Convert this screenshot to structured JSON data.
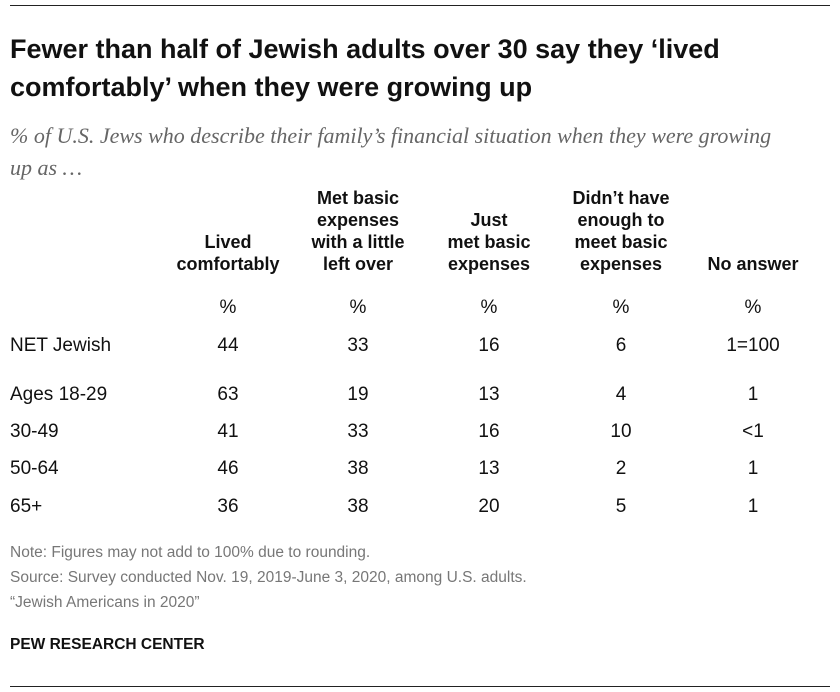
{
  "title": "Fewer than half of Jewish adults over 30 say they ‘lived comfortably’ when they were growing up",
  "subtitle": "% of U.S. Jews who describe their family’s financial situation when they were growing up as …",
  "table": {
    "columns": [
      [
        "Lived",
        "comfortably"
      ],
      [
        "Met basic",
        "expenses",
        "with a little",
        "left over"
      ],
      [
        "Just",
        "met basic",
        "expenses"
      ],
      [
        "Didn’t have",
        "enough to",
        "meet basic",
        "expenses"
      ],
      [
        "No answer"
      ]
    ],
    "units": [
      "%",
      "%",
      "%",
      "%",
      "%"
    ],
    "rows": [
      {
        "label": "NET Jewish",
        "values": [
          44,
          33,
          16,
          6,
          "1=100"
        ]
      },
      {
        "label": "Ages 18-29",
        "values": [
          63,
          19,
          13,
          4,
          1
        ]
      },
      {
        "label": "30-49",
        "values": [
          41,
          33,
          16,
          10,
          "<1"
        ]
      },
      {
        "label": "50-64",
        "values": [
          46,
          38,
          13,
          2,
          1
        ]
      },
      {
        "label": "65+",
        "values": [
          36,
          38,
          20,
          5,
          1
        ]
      }
    ]
  },
  "notes": [
    "Note: Figures may not add to 100% due to rounding.",
    "Source: Survey conducted Nov. 19, 2019-June 3, 2020, among U.S. adults.",
    "“Jewish Americans in 2020”"
  ],
  "footer": "PEW RESEARCH CENTER"
}
